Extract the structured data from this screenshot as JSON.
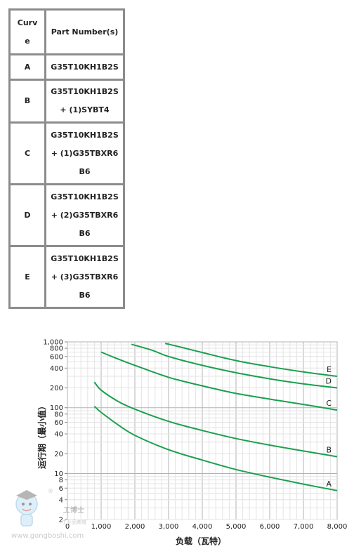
{
  "table": {
    "headers": {
      "curve": "Curv\ne",
      "part": "Part Number(s)"
    },
    "rows": [
      {
        "curve": "A",
        "part": "G35T10KH1B2S"
      },
      {
        "curve": "B",
        "part": "G35T10KH1B2S\n+ (1)SYBT4"
      },
      {
        "curve": "C",
        "part": "G35T10KH1B2S\n+ (1)G35TBXR6\nB6"
      },
      {
        "curve": "D",
        "part": "G35T10KH1B2S\n+ (2)G35TBXR6\nB6"
      },
      {
        "curve": "E",
        "part": "G35T10KH1B2S\n+ (3)G35TBXR6\nB6"
      }
    ]
  },
  "chart_data": {
    "type": "line",
    "xlabel": "负载（瓦特）",
    "ylabel": "运行期（最小值）",
    "xlim": [
      0,
      8000
    ],
    "ylim": [
      2,
      1000
    ],
    "yscale": "log",
    "grid": true,
    "line_color": "#1aa04e",
    "x_ticks": [
      {
        "value": 0,
        "label": "0"
      },
      {
        "value": 1000,
        "label": "1,000"
      },
      {
        "value": 2000,
        "label": "2,000"
      },
      {
        "value": 3000,
        "label": "3,000"
      },
      {
        "value": 4000,
        "label": "4,000"
      },
      {
        "value": 5000,
        "label": "5,000"
      },
      {
        "value": 6000,
        "label": "6,000"
      },
      {
        "value": 7000,
        "label": "7,000"
      },
      {
        "value": 8000,
        "label": "8,000"
      }
    ],
    "y_ticks": [
      {
        "value": 2,
        "label": "2"
      },
      {
        "value": 4,
        "label": "4"
      },
      {
        "value": 6,
        "label": "6"
      },
      {
        "value": 8,
        "label": "8"
      },
      {
        "value": 10,
        "label": "10"
      },
      {
        "value": 20,
        "label": "20"
      },
      {
        "value": 40,
        "label": "40"
      },
      {
        "value": 60,
        "label": "60"
      },
      {
        "value": 80,
        "label": "80"
      },
      {
        "value": 100,
        "label": "100"
      },
      {
        "value": 200,
        "label": "200"
      },
      {
        "value": 400,
        "label": "400"
      },
      {
        "value": 600,
        "label": "600"
      },
      {
        "value": 800,
        "label": "800"
      },
      {
        "value": 1000,
        "label": "1,000"
      }
    ],
    "series": [
      {
        "name": "A",
        "x": [
          800,
          1000,
          1500,
          2000,
          3000,
          4000,
          5000,
          6000,
          7000,
          8000
        ],
        "y": [
          105,
          85,
          55,
          38,
          23,
          16,
          11.5,
          8.8,
          6.9,
          5.5
        ]
      },
      {
        "name": "B",
        "x": [
          800,
          1000,
          1500,
          2000,
          3000,
          4000,
          5000,
          6000,
          7000,
          8000
        ],
        "y": [
          245,
          185,
          125,
          95,
          62,
          45,
          34,
          27,
          22,
          18
        ]
      },
      {
        "name": "C",
        "x": [
          1000,
          1500,
          2000,
          3000,
          4000,
          5000,
          6000,
          7000,
          8000
        ],
        "y": [
          700,
          550,
          440,
          290,
          215,
          165,
          135,
          112,
          92
        ]
      },
      {
        "name": "D",
        "x": [
          1900,
          2500,
          3000,
          4000,
          5000,
          6000,
          7000,
          8000
        ],
        "y": [
          920,
          750,
          600,
          440,
          340,
          275,
          230,
          200
        ]
      },
      {
        "name": "E",
        "x": [
          2900,
          3500,
          4000,
          5000,
          6000,
          7000,
          8000
        ],
        "y": [
          950,
          800,
          690,
          520,
          420,
          350,
          300
        ]
      }
    ],
    "curve_labels": [
      "A",
      "B",
      "C",
      "D",
      "E"
    ]
  },
  "watermark": {
    "brand": "工博士",
    "tagline": "工业品商城",
    "url": "www.gongboshi.com",
    "mark": "®"
  }
}
